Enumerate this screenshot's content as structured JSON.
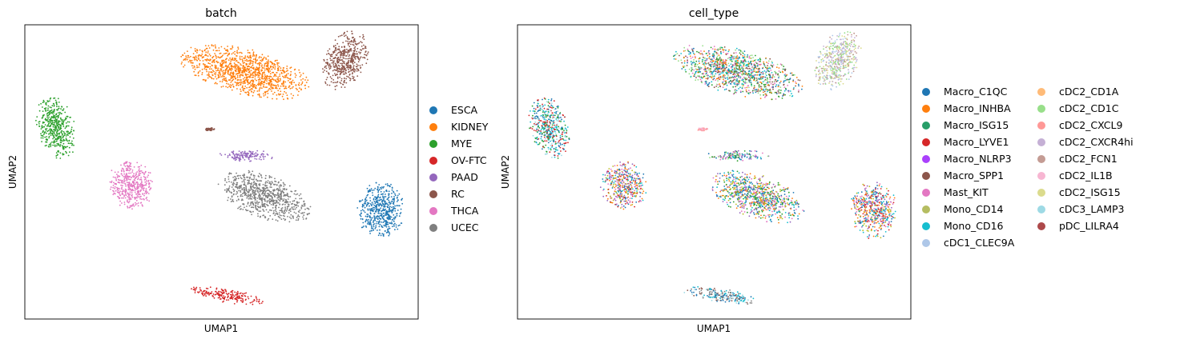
{
  "chart_data": [
    {
      "type": "scatter",
      "title": "batch",
      "xlabel": "UMAP1",
      "ylabel": "UMAP2",
      "grid": false,
      "ticks": false,
      "legend_placement": "right",
      "xlim": [
        -8,
        12
      ],
      "ylim": [
        -8,
        12
      ],
      "clusters": [
        {
          "label": "KIDNEY",
          "color": "#ff7f0e",
          "center": [
            3.2,
            8.8
          ],
          "spread": [
            3.2,
            1.4
          ],
          "angle": -20
        },
        {
          "label": "RC",
          "color": "#8c564b",
          "center": [
            8.3,
            9.6
          ],
          "spread": [
            1.0,
            1.9
          ],
          "angle": -15
        },
        {
          "label": "MYE",
          "color": "#2ca02c",
          "center": [
            -6.4,
            5.0
          ],
          "spread": [
            0.9,
            2.0
          ],
          "angle": 10
        },
        {
          "label": "RC",
          "color": "#8c564b",
          "center": [
            1.4,
            4.9
          ],
          "spread": [
            0.25,
            0.1
          ],
          "angle": 0
        },
        {
          "label": "PAAD",
          "color": "#9467bd",
          "center": [
            3.2,
            3.1
          ],
          "spread": [
            1.5,
            0.35
          ],
          "angle": 0
        },
        {
          "label": "THCA",
          "color": "#e377c2",
          "center": [
            -2.6,
            1.1
          ],
          "spread": [
            1.1,
            1.5
          ],
          "angle": 5
        },
        {
          "label": "UCEC",
          "color": "#7f7f7f",
          "center": [
            4.2,
            0.3
          ],
          "spread": [
            2.4,
            1.3
          ],
          "angle": -30
        },
        {
          "label": "ESCA",
          "color": "#1f77b4",
          "center": [
            10.1,
            -0.6
          ],
          "spread": [
            1.1,
            1.8
          ],
          "angle": 0
        },
        {
          "label": "OV-FTC",
          "color": "#d62728",
          "center": [
            2.3,
            -6.4
          ],
          "spread": [
            1.8,
            0.45
          ],
          "angle": -12
        }
      ],
      "legend": [
        {
          "label": "ESCA",
          "color": "#1f77b4"
        },
        {
          "label": "KIDNEY",
          "color": "#ff7f0e"
        },
        {
          "label": "MYE",
          "color": "#2ca02c"
        },
        {
          "label": "OV-FTC",
          "color": "#d62728"
        },
        {
          "label": "PAAD",
          "color": "#9467bd"
        },
        {
          "label": "RC",
          "color": "#8c564b"
        },
        {
          "label": "THCA",
          "color": "#e377c2"
        },
        {
          "label": "UCEC",
          "color": "#7f7f7f"
        }
      ]
    },
    {
      "type": "scatter",
      "title": "cell_type",
      "xlabel": "UMAP1",
      "ylabel": "UMAP2",
      "grid": false,
      "ticks": false,
      "legend_placement": "right",
      "xlim": [
        -8,
        12
      ],
      "ylim": [
        -8,
        12
      ],
      "clusters": [
        {
          "center": [
            3.2,
            8.8
          ],
          "spread": [
            3.2,
            1.4
          ],
          "angle": -20,
          "mix": [
            "#17becf",
            "#2ca02c",
            "#1f77b4",
            "#98df8a",
            "#8c564b",
            "#e377c2",
            "#ff7f0e"
          ]
        },
        {
          "center": [
            8.3,
            9.6
          ],
          "spread": [
            1.0,
            1.9
          ],
          "angle": -15,
          "mix": [
            "#dbdb8d",
            "#c5b0d5",
            "#98df8a",
            "#c49c94",
            "#aec7e8"
          ]
        },
        {
          "center": [
            -6.4,
            5.0
          ],
          "spread": [
            0.9,
            2.0
          ],
          "angle": 10,
          "mix": [
            "#17becf",
            "#2ca02c",
            "#9edae5",
            "#1f77b4",
            "#d62728"
          ]
        },
        {
          "center": [
            1.4,
            4.9
          ],
          "spread": [
            0.25,
            0.1
          ],
          "angle": 0,
          "mix": [
            "#ff9896",
            "#f7b6d2"
          ]
        },
        {
          "center": [
            3.2,
            3.1
          ],
          "spread": [
            1.5,
            0.35
          ],
          "angle": 0,
          "mix": [
            "#1f77b4",
            "#9467bd",
            "#2ca02c",
            "#17becf",
            "#98df8a",
            "#e377c2"
          ]
        },
        {
          "center": [
            -2.6,
            1.1
          ],
          "spread": [
            1.1,
            1.5
          ],
          "angle": 5,
          "mix": [
            "#ff7f0e",
            "#1f77b4",
            "#e377c2",
            "#d62728",
            "#bcbd22",
            "#17becf",
            "#9467bd"
          ]
        },
        {
          "center": [
            4.2,
            0.3
          ],
          "spread": [
            2.4,
            1.3
          ],
          "angle": -30,
          "mix": [
            "#bcbd22",
            "#1f77b4",
            "#e377c2",
            "#17becf",
            "#ff7f0e",
            "#2ca02c",
            "#9467bd"
          ]
        },
        {
          "center": [
            10.1,
            -0.6
          ],
          "spread": [
            1.1,
            1.8
          ],
          "angle": 0,
          "mix": [
            "#9467bd",
            "#e377c2",
            "#bcbd22",
            "#1f77b4",
            "#ff7f0e",
            "#d62728",
            "#17becf"
          ]
        },
        {
          "center": [
            2.3,
            -6.4
          ],
          "spread": [
            1.8,
            0.45
          ],
          "angle": -12,
          "mix": [
            "#7f7f7f",
            "#8c564b",
            "#1f77b4",
            "#17becf",
            "#9edae5"
          ]
        }
      ],
      "legend": [
        {
          "label": "Macro_C1QC",
          "color": "#1f77b4"
        },
        {
          "label": "Macro_INHBA",
          "color": "#ff7f0e"
        },
        {
          "label": "Macro_ISG15",
          "color": "#279e68"
        },
        {
          "label": "Macro_LYVE1",
          "color": "#d62728"
        },
        {
          "label": "Macro_NLRP3",
          "color": "#aa40fc"
        },
        {
          "label": "Macro_SPP1",
          "color": "#8c564b"
        },
        {
          "label": "Mast_KIT",
          "color": "#e377c2"
        },
        {
          "label": "Mono_CD14",
          "color": "#b5bd61"
        },
        {
          "label": "Mono_CD16",
          "color": "#17becf"
        },
        {
          "label": "cDC1_CLEC9A",
          "color": "#aec7e8"
        },
        {
          "label": "cDC2_CD1A",
          "color": "#ffbb78"
        },
        {
          "label": "cDC2_CD1C",
          "color": "#98df8a"
        },
        {
          "label": "cDC2_CXCL9",
          "color": "#ff9896"
        },
        {
          "label": "cDC2_CXCR4hi",
          "color": "#c5b0d5"
        },
        {
          "label": "cDC2_FCN1",
          "color": "#c49c94"
        },
        {
          "label": "cDC2_IL1B",
          "color": "#f7b6d2"
        },
        {
          "label": "cDC2_ISG15",
          "color": "#dbdb8d"
        },
        {
          "label": "cDC3_LAMP3",
          "color": "#9edae5"
        },
        {
          "label": "pDC_LILRA4",
          "color": "#ad494a"
        }
      ]
    }
  ]
}
